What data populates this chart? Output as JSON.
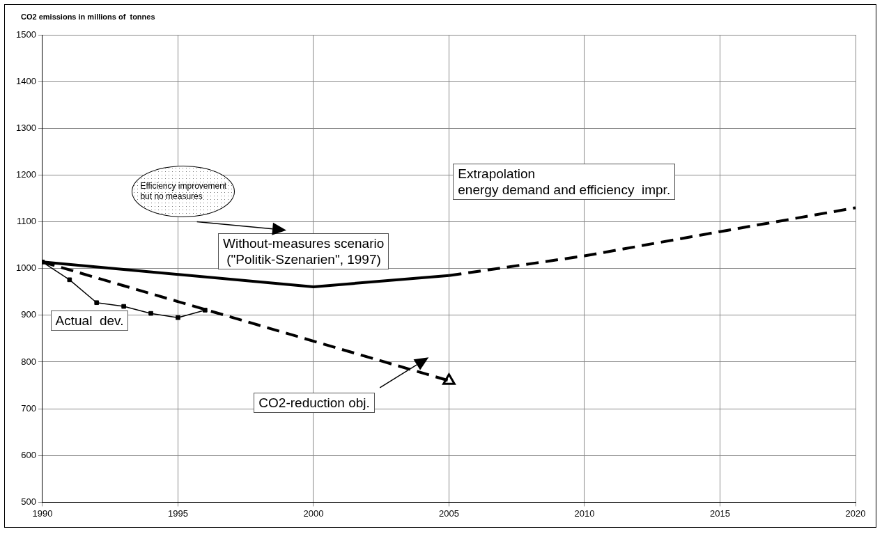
{
  "chart_data": {
    "type": "line",
    "ylabel": "CO2 emissions in millions of  tonnes",
    "xlim": [
      1990,
      2020
    ],
    "xticks": [
      1990,
      1995,
      2000,
      2005,
      2010,
      2015,
      2020
    ],
    "ylim": [
      500,
      1500
    ],
    "yticks": [
      500,
      600,
      700,
      800,
      900,
      1000,
      1100,
      1200,
      1300,
      1400,
      1500
    ],
    "grid": true,
    "legend": false,
    "series": [
      {
        "type": "line",
        "color": "#000000",
        "x": [
          1990,
          1991,
          1992,
          1993,
          1994,
          1995,
          1996
        ],
        "values": [
          1014,
          976,
          927,
          919,
          904,
          895,
          911
        ],
        "marker": "square",
        "line_style": "solid"
      },
      {
        "type": "line",
        "color": "#000000",
        "x": [
          1990,
          2000,
          2005
        ],
        "values": [
          1014,
          961,
          985
        ],
        "marker": "none",
        "line_style": "solid"
      },
      {
        "type": "line",
        "color": "#000000",
        "x": [
          2005,
          2010,
          2015,
          2020
        ],
        "values": [
          985,
          1027,
          1079,
          1130
        ],
        "marker": "none",
        "line_style": "dashed"
      },
      {
        "type": "line",
        "color": "#000000",
        "x": [
          1990,
          2005
        ],
        "values": [
          1014,
          760
        ],
        "marker": "none",
        "line_style": "dashed"
      },
      {
        "type": "scatter",
        "color": "#000000",
        "x": [
          2005
        ],
        "values": [
          760
        ],
        "marker": "triangle"
      }
    ],
    "annotations": [
      "Efficiency improvement\nbut no measures",
      "Without-measures scenario\n (\"Politik-Szenarien\", 1997)",
      "Extrapolation\nenergy demand and efficiency  impr.",
      "Actual  dev.",
      "CO2-reduction obj."
    ]
  }
}
